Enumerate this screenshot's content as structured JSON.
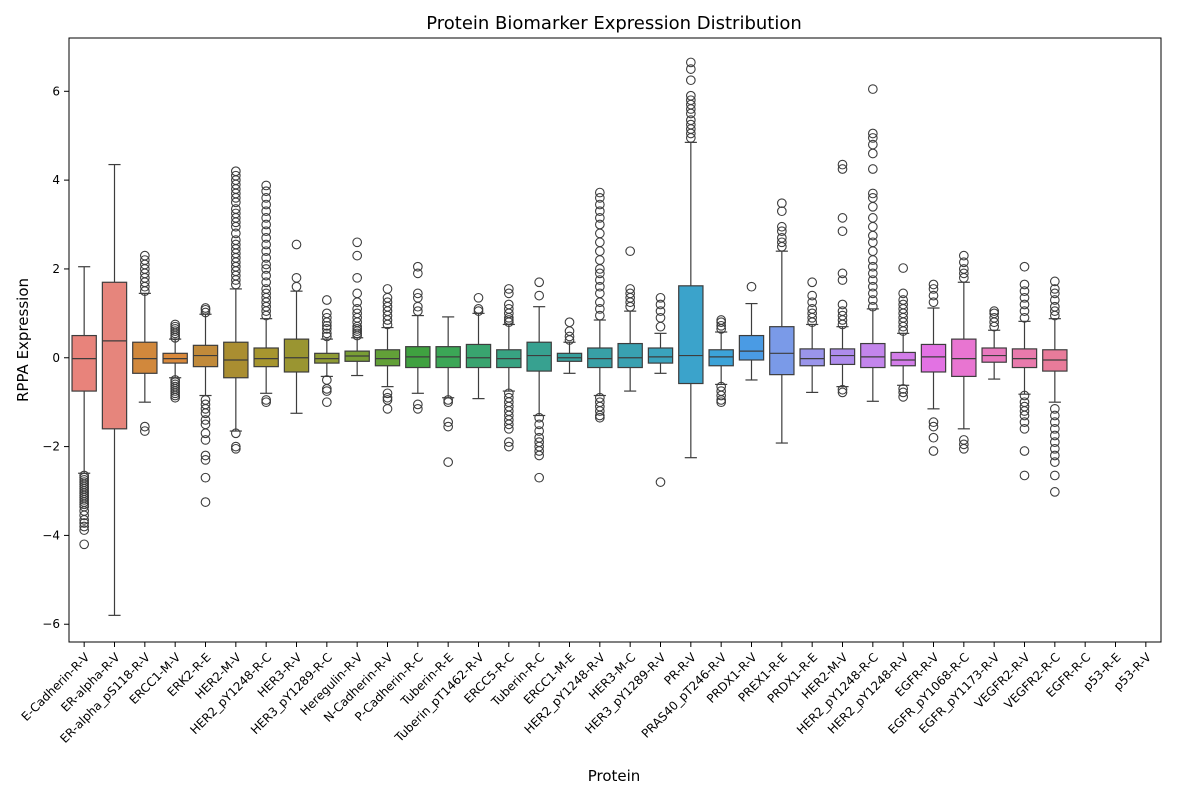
{
  "chart_data": {
    "type": "box",
    "title": "Protein Biomarker Expression Distribution",
    "xlabel": "Protein",
    "ylabel": "RPPA Expression",
    "ylim": [
      -6.4,
      7.2
    ],
    "yticks": [
      -6,
      -4,
      -2,
      0,
      2,
      4,
      6
    ],
    "grid": false,
    "legend": "none",
    "categories": [
      "E-Cadherin-R-V",
      "ER-alpha-R-V",
      "ER-alpha_pS118-R-V",
      "ERCC1-M-V",
      "ERK2-R-E",
      "HER2-M-V",
      "HER2_pY1248-R-C",
      "HER3-R-V",
      "HER3_pY1289-R-C",
      "Heregulin-R-V",
      "N-Cadherin-R-V",
      "P-Cadherin-R-C",
      "Tuberin-R-E",
      "Tuberin_pT1462-R-V",
      "ERCC5-R-C",
      "Tuberin-R-C",
      "ERCC1-M-E",
      "HER2_pY1248-R-V",
      "HER3-M-C",
      "HER3_pY1289-R-V",
      "PR-R-V",
      "PRAS40_pT246-R-V",
      "PRDX1-R-V",
      "PREX1-R-E",
      "PRDX1-R-E",
      "HER2-M-V",
      "HER2_pY1248-R-C",
      "HER2_pY1248-R-V",
      "EGFR-R-V",
      "EGFR_pY1068-R-C",
      "EGFR_pY1173-R-V",
      "VEGFR2-R-V",
      "VEGFR2-R-C",
      "EGFR-R-C",
      "p53-R-E",
      "p53-R-V"
    ],
    "series": [
      {
        "q1": -0.75,
        "median": -0.02,
        "q3": 0.5,
        "whisker_low": -2.6,
        "whisker_high": 2.05,
        "outliers": [
          -2.65,
          -2.7,
          -2.75,
          -2.8,
          -2.85,
          -2.9,
          -2.95,
          -3.0,
          -3.05,
          -3.1,
          -3.15,
          -3.2,
          -3.25,
          -3.3,
          -3.35,
          -3.45,
          -3.55,
          -3.65,
          -3.72,
          -3.8,
          -3.88,
          -4.2
        ],
        "color": "#e8837b"
      },
      {
        "q1": -1.6,
        "median": 0.38,
        "q3": 1.7,
        "whisker_low": -5.8,
        "whisker_high": 4.35,
        "outliers": [],
        "color": "#e6857c"
      },
      {
        "q1": -0.35,
        "median": -0.02,
        "q3": 0.35,
        "whisker_low": -1.0,
        "whisker_high": 1.45,
        "outliers": [
          -1.55,
          -1.65,
          1.5,
          1.6,
          1.7,
          1.8,
          1.9,
          2.0,
          2.1,
          2.2,
          2.3
        ],
        "color": "#d1883c"
      },
      {
        "q1": -0.12,
        "median": -0.02,
        "q3": 0.1,
        "whisker_low": -0.45,
        "whisker_high": 0.42,
        "outliers": [
          -0.5,
          -0.55,
          -0.6,
          -0.65,
          -0.7,
          -0.75,
          -0.8,
          -0.85,
          -0.9,
          0.45,
          0.5,
          0.55,
          0.6,
          0.65,
          0.7,
          0.75
        ],
        "color": "#da8a3c"
      },
      {
        "q1": -0.2,
        "median": 0.05,
        "q3": 0.28,
        "whisker_low": -0.85,
        "whisker_high": 0.98,
        "outliers": [
          -0.95,
          -1.05,
          -1.15,
          -1.25,
          -1.4,
          -1.5,
          -1.7,
          -1.85,
          -2.2,
          -2.3,
          -2.7,
          -3.25,
          1.02,
          1.08,
          1.12
        ],
        "color": "#c18a3a"
      },
      {
        "q1": -0.45,
        "median": -0.05,
        "q3": 0.35,
        "whisker_low": -1.65,
        "whisker_high": 1.55,
        "outliers": [
          -1.7,
          -2.0,
          -2.05,
          1.65,
          1.75,
          1.85,
          1.95,
          2.05,
          2.15,
          2.25,
          2.35,
          2.45,
          2.55,
          2.65,
          2.8,
          2.95,
          3.05,
          3.15,
          3.25,
          3.35,
          3.5,
          3.6,
          3.7,
          3.8,
          3.9,
          4.0,
          4.1,
          4.2
        ],
        "color": "#aa8e31"
      },
      {
        "q1": -0.2,
        "median": -0.02,
        "q3": 0.22,
        "whisker_low": -0.8,
        "whisker_high": 0.88,
        "outliers": [
          -0.95,
          -1.0,
          0.95,
          1.05,
          1.15,
          1.25,
          1.35,
          1.45,
          1.55,
          1.7,
          1.85,
          2.0,
          2.1,
          2.25,
          2.4,
          2.55,
          2.7,
          2.85,
          3.0,
          3.15,
          3.3,
          3.45,
          3.6,
          3.75,
          3.88
        ],
        "color": "#a7962f"
      },
      {
        "q1": -0.32,
        "median": 0.0,
        "q3": 0.42,
        "whisker_low": -1.25,
        "whisker_high": 1.5,
        "outliers": [
          1.6,
          1.8,
          2.55
        ],
        "color": "#9a9531"
      },
      {
        "q1": -0.12,
        "median": -0.02,
        "q3": 0.1,
        "whisker_low": -0.42,
        "whisker_high": 0.42,
        "outliers": [
          -0.5,
          -0.7,
          -0.75,
          -1.0,
          0.48,
          0.55,
          0.65,
          0.72,
          0.8,
          0.9,
          1.0,
          1.3
        ],
        "color": "#8f9b34"
      },
      {
        "q1": -0.08,
        "median": 0.04,
        "q3": 0.15,
        "whisker_low": -0.4,
        "whisker_high": 0.45,
        "outliers": [
          0.5,
          0.55,
          0.6,
          0.65,
          0.7,
          0.8,
          0.9,
          1.0,
          1.1,
          1.25,
          1.45,
          1.8,
          2.3,
          2.6
        ],
        "color": "#799e35"
      },
      {
        "q1": -0.18,
        "median": -0.02,
        "q3": 0.18,
        "whisker_low": -0.65,
        "whisker_high": 0.68,
        "outliers": [
          -0.8,
          -0.9,
          -0.95,
          -1.15,
          0.75,
          0.85,
          0.95,
          1.05,
          1.15,
          1.25,
          1.35,
          1.55
        ],
        "color": "#62a038"
      },
      {
        "q1": -0.22,
        "median": 0.02,
        "q3": 0.25,
        "whisker_low": -0.8,
        "whisker_high": 0.95,
        "outliers": [
          -1.05,
          -1.15,
          1.05,
          1.15,
          1.35,
          1.45,
          1.9,
          2.05
        ],
        "color": "#3fa140"
      },
      {
        "q1": -0.22,
        "median": 0.02,
        "q3": 0.25,
        "whisker_low": -0.9,
        "whisker_high": 0.92,
        "outliers": [
          -0.95,
          -1.0,
          -1.45,
          -1.55,
          -2.35
        ],
        "color": "#3ba656"
      },
      {
        "q1": -0.22,
        "median": 0.0,
        "q3": 0.3,
        "whisker_low": -0.92,
        "whisker_high": 1.0,
        "outliers": [
          1.05,
          1.1,
          1.35
        ],
        "color": "#39a46f"
      },
      {
        "q1": -0.22,
        "median": -0.02,
        "q3": 0.18,
        "whisker_low": -0.75,
        "whisker_high": 0.75,
        "outliers": [
          -0.8,
          -0.9,
          -1.0,
          -1.1,
          -1.2,
          -1.3,
          -1.4,
          -1.5,
          -1.6,
          -1.9,
          -2.0,
          0.8,
          0.85,
          0.9,
          1.0,
          1.1,
          1.2,
          1.45,
          1.55
        ],
        "color": "#38a382"
      },
      {
        "q1": -0.3,
        "median": 0.05,
        "q3": 0.35,
        "whisker_low": -1.3,
        "whisker_high": 1.15,
        "outliers": [
          -1.35,
          -1.5,
          -1.65,
          -1.8,
          -1.9,
          -2.0,
          -2.1,
          -2.2,
          -2.7,
          1.4,
          1.7
        ],
        "color": "#37a190"
      },
      {
        "q1": -0.08,
        "median": 0.0,
        "q3": 0.1,
        "whisker_low": -0.35,
        "whisker_high": 0.35,
        "outliers": [
          0.4,
          0.48,
          0.6,
          0.8
        ],
        "color": "#379f9c"
      },
      {
        "q1": -0.22,
        "median": -0.02,
        "q3": 0.22,
        "whisker_low": -0.85,
        "whisker_high": 0.85,
        "outliers": [
          -0.9,
          -1.0,
          -1.1,
          -1.2,
          -1.3,
          -1.35,
          0.95,
          1.1,
          1.25,
          1.45,
          1.6,
          1.75,
          1.9,
          2.0,
          2.2,
          2.4,
          2.6,
          2.8,
          3.0,
          3.15,
          3.3,
          3.45,
          3.6,
          3.72
        ],
        "color": "#38a0a6"
      },
      {
        "q1": -0.22,
        "median": 0.0,
        "q3": 0.32,
        "whisker_low": -0.75,
        "whisker_high": 1.05,
        "outliers": [
          1.15,
          1.25,
          1.35,
          1.45,
          1.55,
          2.4
        ],
        "color": "#39a1b1"
      },
      {
        "q1": -0.12,
        "median": 0.02,
        "q3": 0.22,
        "whisker_low": -0.35,
        "whisker_high": 0.55,
        "outliers": [
          0.7,
          0.9,
          1.05,
          1.2,
          1.35,
          -2.8
        ],
        "color": "#3aa3bd"
      },
      {
        "q1": -0.58,
        "median": 0.05,
        "q3": 1.62,
        "whisker_low": -2.25,
        "whisker_high": 4.85,
        "outliers": [
          4.95,
          5.05,
          5.15,
          5.25,
          5.35,
          5.5,
          5.6,
          5.7,
          5.8,
          5.9,
          6.25,
          6.5,
          6.65
        ],
        "color": "#3ba3cb"
      },
      {
        "q1": -0.18,
        "median": 0.02,
        "q3": 0.18,
        "whisker_low": -0.6,
        "whisker_high": 0.58,
        "outliers": [
          -0.65,
          -0.75,
          -0.85,
          -0.95,
          -1.0,
          0.65,
          0.72,
          0.8,
          0.85
        ],
        "color": "#3ca3d8"
      },
      {
        "q1": -0.05,
        "median": 0.15,
        "q3": 0.5,
        "whisker_low": -0.5,
        "whisker_high": 1.22,
        "outliers": [
          1.6
        ],
        "color": "#4a9be4"
      },
      {
        "q1": -0.38,
        "median": 0.1,
        "q3": 0.7,
        "whisker_low": -1.92,
        "whisker_high": 2.4,
        "outliers": [
          2.5,
          2.6,
          2.7,
          2.85,
          2.95,
          3.3,
          3.48
        ],
        "color": "#7a9ae8"
      },
      {
        "q1": -0.18,
        "median": -0.02,
        "q3": 0.2,
        "whisker_low": -0.78,
        "whisker_high": 0.75,
        "outliers": [
          0.8,
          0.9,
          1.0,
          1.1,
          1.25,
          1.4,
          1.7
        ],
        "color": "#9a95eb"
      },
      {
        "q1": -0.15,
        "median": 0.05,
        "q3": 0.2,
        "whisker_low": -0.65,
        "whisker_high": 0.7,
        "outliers": [
          -0.72,
          -0.78,
          0.75,
          0.85,
          0.95,
          1.05,
          1.2,
          1.75,
          1.9,
          2.85,
          3.15,
          4.25,
          4.35
        ],
        "color": "#ae8cec"
      },
      {
        "q1": -0.22,
        "median": 0.02,
        "q3": 0.32,
        "whisker_low": -0.98,
        "whisker_high": 1.1,
        "outliers": [
          1.15,
          1.3,
          1.45,
          1.6,
          1.75,
          1.9,
          2.05,
          2.2,
          2.4,
          2.6,
          2.75,
          2.95,
          3.15,
          3.4,
          3.6,
          3.7,
          4.25,
          4.6,
          4.8,
          4.95,
          5.05,
          6.05
        ],
        "color": "#c385ec"
      },
      {
        "q1": -0.18,
        "median": -0.05,
        "q3": 0.12,
        "whisker_low": -0.62,
        "whisker_high": 0.55,
        "outliers": [
          -0.7,
          -0.78,
          -0.88,
          0.6,
          0.7,
          0.8,
          0.9,
          1.0,
          1.1,
          1.2,
          1.3,
          1.45,
          2.02
        ],
        "color": "#d37de9"
      },
      {
        "q1": -0.32,
        "median": 0.02,
        "q3": 0.3,
        "whisker_low": -1.15,
        "whisker_high": 1.12,
        "outliers": [
          -1.45,
          -1.55,
          -1.8,
          -2.1,
          1.25,
          1.4,
          1.55,
          1.65
        ],
        "color": "#e272e3"
      },
      {
        "q1": -0.42,
        "median": -0.02,
        "q3": 0.42,
        "whisker_low": -1.6,
        "whisker_high": 1.7,
        "outliers": [
          -1.85,
          -1.95,
          -2.05,
          1.8,
          1.9,
          2.0,
          2.15,
          2.3
        ],
        "color": "#e875d1"
      },
      {
        "q1": -0.1,
        "median": 0.05,
        "q3": 0.22,
        "whisker_low": -0.48,
        "whisker_high": 0.62,
        "outliers": [
          0.7,
          0.8,
          0.9,
          1.0,
          1.05
        ],
        "color": "#e879be"
      },
      {
        "q1": -0.22,
        "median": -0.02,
        "q3": 0.2,
        "whisker_low": -0.82,
        "whisker_high": 0.82,
        "outliers": [
          -0.85,
          -1.0,
          -1.1,
          -1.2,
          -1.3,
          -1.45,
          -1.6,
          -2.1,
          -2.65,
          0.9,
          1.05,
          1.2,
          1.35,
          1.5,
          1.65,
          2.05
        ],
        "color": "#e87aac"
      },
      {
        "q1": -0.3,
        "median": -0.05,
        "q3": 0.18,
        "whisker_low": -1.0,
        "whisker_high": 0.88,
        "outliers": [
          -1.15,
          -1.3,
          -1.45,
          -1.6,
          -1.75,
          -1.9,
          -2.05,
          -2.2,
          -2.35,
          -2.65,
          -3.02,
          0.95,
          1.05,
          1.15,
          1.3,
          1.45,
          1.55,
          1.72
        ],
        "color": "#e87b9a"
      },
      {
        "q1": null,
        "median": null,
        "q3": null,
        "whisker_low": null,
        "whisker_high": null,
        "outliers": [],
        "color": "#e8818a"
      },
      {
        "q1": null,
        "median": null,
        "q3": null,
        "whisker_low": null,
        "whisker_high": null,
        "outliers": [],
        "color": "#e8837c"
      },
      {
        "q1": null,
        "median": null,
        "q3": null,
        "whisker_low": null,
        "whisker_high": null,
        "outliers": [],
        "color": "#e8837c"
      }
    ]
  }
}
